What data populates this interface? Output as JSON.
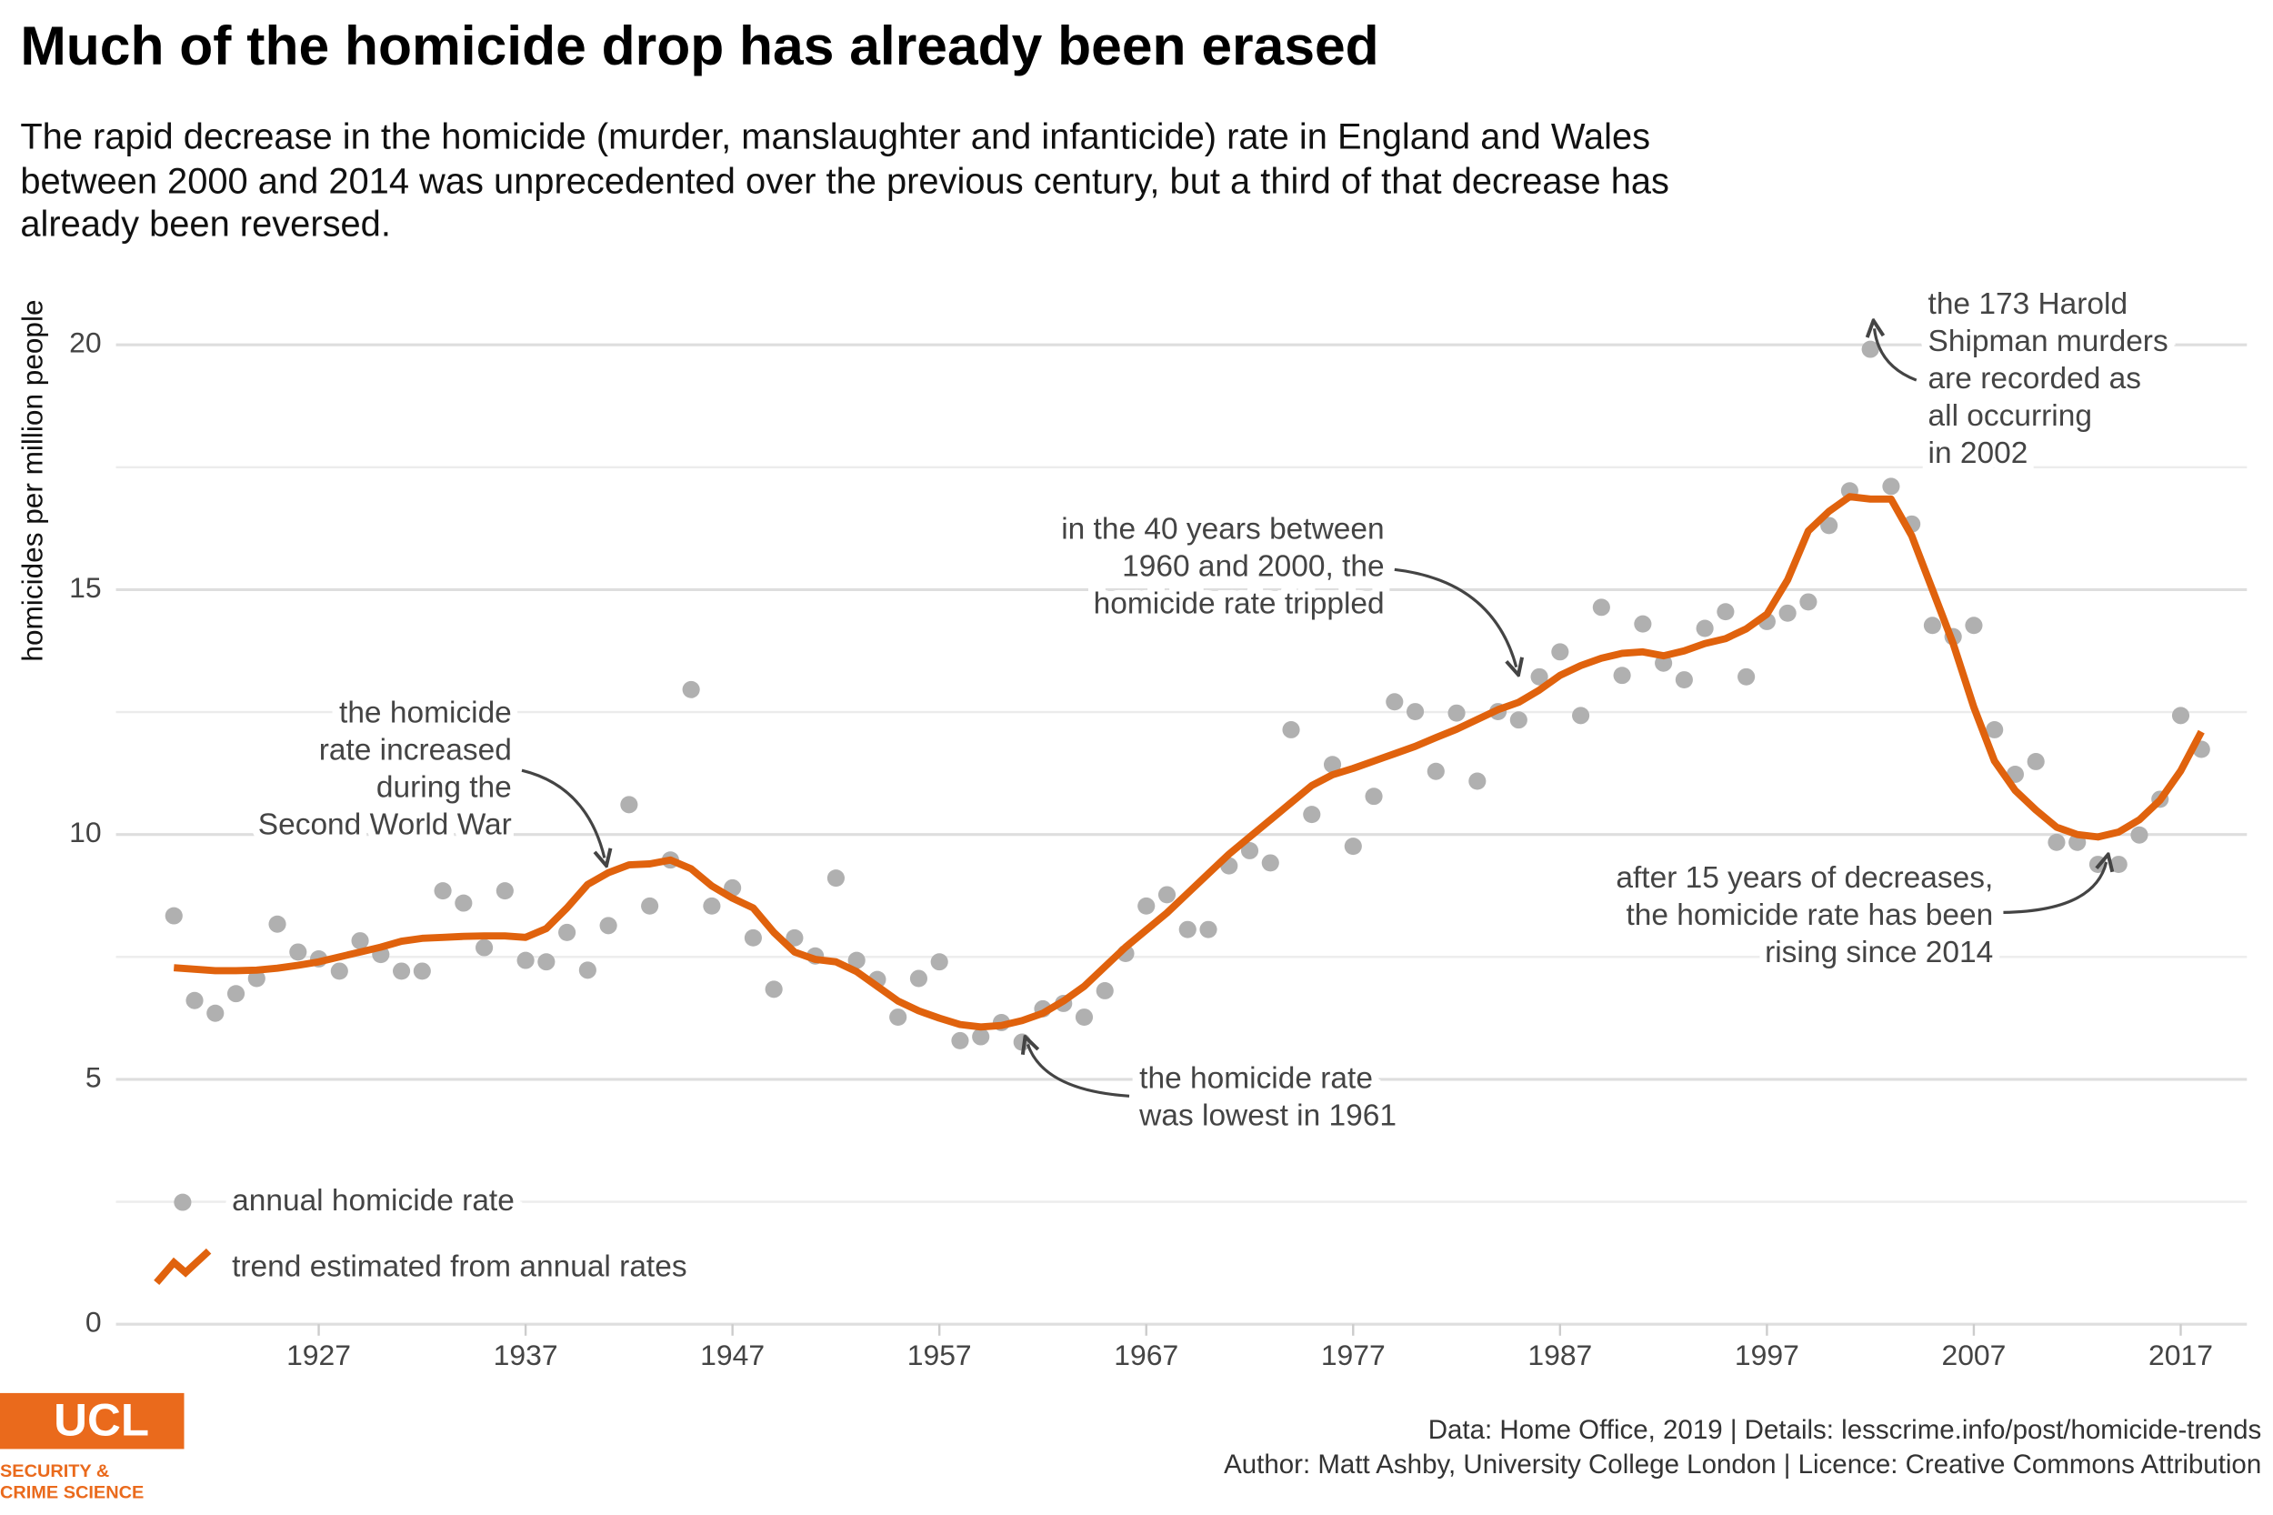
{
  "chart_data": {
    "type": "scatter_trend",
    "title": "Much of the homicide drop has already been erased",
    "subtitle": [
      "The rapid decrease in the homicide (murder, manslaughter and infanticide) rate in England and Wales",
      "between 2000 and 2014 was unprecedented over the previous century, but a third of that decrease has",
      "already been reversed."
    ],
    "y_label": "homicides per million people",
    "x": [
      1920,
      1921,
      1922,
      1923,
      1924,
      1925,
      1926,
      1927,
      1928,
      1929,
      1930,
      1931,
      1932,
      1933,
      1934,
      1935,
      1936,
      1937,
      1938,
      1939,
      1940,
      1941,
      1942,
      1943,
      1944,
      1945,
      1946,
      1947,
      1948,
      1949,
      1950,
      1951,
      1952,
      1953,
      1954,
      1955,
      1956,
      1957,
      1958,
      1959,
      1960,
      1961,
      1962,
      1963,
      1964,
      1965,
      1966,
      1967,
      1968,
      1969,
      1970,
      1971,
      1972,
      1973,
      1974,
      1975,
      1976,
      1977,
      1978,
      1979,
      1980,
      1981,
      1982,
      1983,
      1984,
      1985,
      1986,
      1987,
      1988,
      1989,
      1990,
      1991,
      1992,
      1993,
      1994,
      1995,
      1996,
      1997,
      1998,
      1999,
      2000,
      2001,
      2002,
      2003,
      2004,
      2005,
      2006,
      2007,
      2008,
      2009,
      2010,
      2011,
      2012,
      2013,
      2014,
      2015,
      2016,
      2017,
      2018
    ],
    "series": [
      {
        "name": "annual homicide rate",
        "color": "#b0b0b0",
        "mark": "point",
        "values": [
          8.34,
          6.61,
          6.35,
          6.75,
          7.06,
          8.17,
          7.6,
          7.46,
          7.21,
          7.83,
          7.55,
          7.21,
          7.21,
          8.85,
          8.6,
          7.69,
          8.85,
          7.43,
          7.4,
          8.0,
          7.23,
          8.14,
          10.61,
          8.54,
          9.48,
          12.96,
          8.54,
          8.91,
          7.89,
          6.84,
          7.89,
          7.52,
          9.11,
          7.43,
          7.04,
          6.27,
          7.06,
          7.4,
          5.79,
          5.87,
          6.16,
          5.76,
          6.44,
          6.55,
          6.27,
          6.81,
          7.57,
          8.54,
          8.77,
          8.06,
          8.06,
          9.36,
          9.67,
          9.42,
          12.14,
          10.41,
          11.43,
          9.76,
          10.78,
          12.71,
          12.51,
          11.29,
          12.48,
          11.09,
          12.51,
          12.34,
          13.22,
          13.73,
          12.43,
          14.64,
          13.25,
          14.3,
          13.5,
          13.16,
          14.21,
          14.55,
          13.22,
          14.35,
          14.52,
          14.75,
          16.31,
          17.02,
          19.91,
          17.11,
          16.34,
          14.27,
          14.04,
          14.27,
          12.14,
          11.23,
          11.49,
          9.84,
          9.84,
          9.39,
          9.39,
          9.99,
          10.72,
          12.43,
          11.74
        ]
      },
      {
        "name": "trend estimated from annual rates",
        "color": "#e0620d",
        "mark": "line",
        "values": [
          7.28,
          7.25,
          7.22,
          7.22,
          7.23,
          7.27,
          7.33,
          7.4,
          7.5,
          7.6,
          7.7,
          7.82,
          7.88,
          7.9,
          7.92,
          7.93,
          7.93,
          7.9,
          8.08,
          8.5,
          8.98,
          9.22,
          9.38,
          9.4,
          9.48,
          9.3,
          8.95,
          8.7,
          8.5,
          8.0,
          7.6,
          7.45,
          7.4,
          7.2,
          6.9,
          6.6,
          6.4,
          6.25,
          6.12,
          6.07,
          6.1,
          6.2,
          6.35,
          6.6,
          6.9,
          7.3,
          7.7,
          8.05,
          8.4,
          8.8,
          9.2,
          9.6,
          9.95,
          10.3,
          10.65,
          11.0,
          11.22,
          11.35,
          11.5,
          11.65,
          11.8,
          11.98,
          12.15,
          12.35,
          12.55,
          12.7,
          12.95,
          13.25,
          13.45,
          13.6,
          13.7,
          13.73,
          13.65,
          13.75,
          13.9,
          14.0,
          14.2,
          14.5,
          15.2,
          16.2,
          16.6,
          16.9,
          16.85,
          16.85,
          16.1,
          15.0,
          13.9,
          12.6,
          11.5,
          10.9,
          10.5,
          10.15,
          10.0,
          9.95,
          10.05,
          10.3,
          10.7,
          11.3,
          12.1
        ]
      }
    ],
    "xlim": [
      1917.2,
      2020.2
    ],
    "xticks": [
      1927,
      1937,
      1947,
      1957,
      1967,
      1977,
      1987,
      1997,
      2007,
      2017
    ],
    "ylim": [
      0,
      21.3
    ],
    "yticks": [
      0,
      5,
      10,
      15,
      20
    ],
    "minor_yticks": [
      2.5,
      7.5,
      12.5,
      17.5
    ],
    "grid": true,
    "legend": "bottom-left",
    "annotations": [
      {
        "lines": [
          "the homicide",
          "rate increased",
          "during the",
          "Second World War"
        ]
      },
      {
        "lines": [
          "in the 40 years between",
          "1960 and 2000, the",
          "homicide rate trippled"
        ]
      },
      {
        "lines": [
          "the homicide rate",
          "was lowest in 1961"
        ]
      },
      {
        "lines": [
          "the 173 Harold",
          "Shipman murders",
          "are recorded as",
          "all occurring",
          "in 2002"
        ]
      },
      {
        "lines": [
          "after 15 years of decreases,",
          "the homicide rate has been",
          "rising since 2014"
        ]
      }
    ],
    "footer": [
      "Data: Home Office, 2019 |  Details: lesscrime.info/post/homicide-trends",
      "Author: Matt Ashby, University College London |  Licence: Creative Commons Attribution"
    ],
    "logo": {
      "name": "UCL",
      "lines": [
        "SECURITY &",
        "CRIME SCIENCE"
      ]
    }
  }
}
